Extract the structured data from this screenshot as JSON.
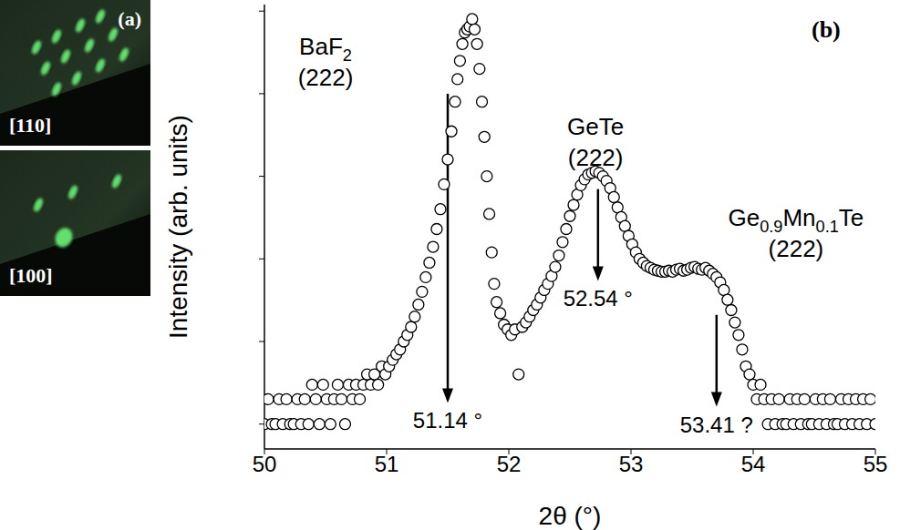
{
  "panels": [
    {
      "label": "(a)",
      "type": "image",
      "images": [
        {
          "label": "[110]"
        },
        {
          "label": "[100]"
        }
      ]
    }
  ],
  "chart_data": {
    "type": "scatter",
    "panel_label": "(b)",
    "x_label": "2θ (°)",
    "y_label": "Intensity (arb. units)",
    "log": "y",
    "grid": false,
    "tick_labels": "x",
    "marker": "circle_open",
    "color": "#000000",
    "xlim": [
      50,
      55
    ],
    "xticks": [
      50,
      51,
      52,
      53,
      54,
      55
    ],
    "ylim": [
      0.5,
      120000
    ],
    "yticks": [
      1,
      10,
      100,
      1000,
      10000,
      100000
    ],
    "x": [
      50.0,
      50.03,
      50.06,
      50.09,
      50.12,
      50.15,
      50.18,
      50.21,
      50.24,
      50.27,
      50.3,
      50.33,
      50.36,
      50.39,
      50.42,
      50.45,
      50.48,
      50.51,
      50.54,
      50.57,
      50.6,
      50.63,
      50.66,
      50.69,
      50.72,
      50.75,
      50.78,
      50.81,
      50.84,
      50.87,
      50.9,
      50.93,
      50.96,
      50.99,
      51.02,
      51.05,
      51.08,
      51.11,
      51.14,
      51.17,
      51.2,
      51.23,
      51.26,
      51.29,
      51.32,
      51.35,
      51.38,
      51.41,
      51.44,
      51.47,
      51.5,
      51.53,
      51.56,
      51.58,
      51.6,
      51.62,
      51.64,
      51.66,
      51.68,
      51.7,
      51.72,
      51.74,
      51.76,
      51.78,
      51.8,
      51.82,
      51.84,
      51.86,
      51.88,
      51.9,
      51.93,
      51.96,
      51.99,
      52.02,
      52.05,
      52.08,
      52.11,
      52.14,
      52.17,
      52.2,
      52.23,
      52.26,
      52.29,
      52.32,
      52.35,
      52.38,
      52.41,
      52.44,
      52.47,
      52.5,
      52.53,
      52.56,
      52.59,
      52.62,
      52.65,
      52.68,
      52.71,
      52.74,
      52.77,
      52.8,
      52.83,
      52.86,
      52.89,
      52.92,
      52.95,
      52.98,
      53.01,
      53.04,
      53.07,
      53.1,
      53.13,
      53.16,
      53.19,
      53.22,
      53.25,
      53.28,
      53.31,
      53.34,
      53.37,
      53.4,
      53.43,
      53.46,
      53.49,
      53.52,
      53.55,
      53.58,
      53.61,
      53.64,
      53.67,
      53.7,
      53.73,
      53.76,
      53.79,
      53.82,
      53.85,
      53.88,
      53.91,
      53.94,
      53.97,
      54.0,
      54.03,
      54.06,
      54.09,
      54.12,
      54.15,
      54.18,
      54.21,
      54.24,
      54.27,
      54.3,
      54.33,
      54.36,
      54.39,
      54.42,
      54.45,
      54.48,
      54.51,
      54.54,
      54.57,
      54.6,
      54.63,
      54.66,
      54.69,
      54.72,
      54.75,
      54.78,
      54.81,
      54.84,
      54.87,
      54.9,
      54.93,
      54.96,
      55.0
    ],
    "values": [
      1,
      2,
      1,
      1,
      2,
      1,
      2,
      1,
      1,
      2,
      1,
      2,
      1,
      3,
      2,
      1,
      3,
      2,
      1,
      2,
      3,
      2,
      1,
      3,
      2,
      3,
      2,
      3,
      4,
      3,
      4,
      3,
      5,
      4,
      5,
      6,
      7,
      8,
      10,
      12,
      15,
      20,
      28,
      40,
      60,
      90,
      140,
      230,
      400,
      800,
      1600,
      3500,
      8000,
      15000,
      25000,
      40000,
      55000,
      60000,
      65000,
      80000,
      60000,
      40000,
      20000,
      8000,
      3000,
      1000,
      350,
      120,
      50,
      30,
      22,
      16,
      14,
      12,
      14,
      4,
      15,
      17,
      20,
      24,
      28,
      34,
      42,
      50,
      62,
      80,
      110,
      160,
      230,
      330,
      450,
      600,
      780,
      920,
      1050,
      1100,
      1150,
      1100,
      1000,
      880,
      720,
      560,
      420,
      320,
      250,
      190,
      150,
      120,
      100,
      90,
      82,
      78,
      74,
      72,
      70,
      70,
      72,
      70,
      74,
      76,
      72,
      74,
      78,
      80,
      76,
      74,
      78,
      72,
      66,
      60,
      52,
      42,
      32,
      24,
      17,
      12,
      8,
      5,
      4,
      3,
      2,
      3,
      2,
      1,
      2,
      1,
      2,
      1,
      1,
      2,
      1,
      2,
      1,
      2,
      1,
      1,
      2,
      1,
      2,
      1,
      2,
      1,
      1,
      2,
      1,
      2,
      1,
      2,
      1,
      2,
      1,
      2,
      1
    ],
    "annotations": [
      {
        "text": [
          "BaF2",
          "(222)"
        ],
        "x": 50.5,
        "y": 30000
      },
      {
        "text": [
          "GeTe",
          "(222)"
        ],
        "x": 52.71,
        "y": 3200
      },
      {
        "text": [
          "Ge0.9Mn0.1Te",
          "(222)"
        ],
        "x": 54.35,
        "y": 250
      }
    ],
    "arrows": [
      {
        "x": 51.5,
        "y": [
          10000,
          2
        ],
        "label": "51.14 °"
      },
      {
        "x": 52.73,
        "y": [
          700,
          60
        ],
        "label": "52.54 °"
      },
      {
        "x": 53.7,
        "y": [
          21,
          1.8
        ],
        "label": "53.41 ?"
      }
    ]
  }
}
